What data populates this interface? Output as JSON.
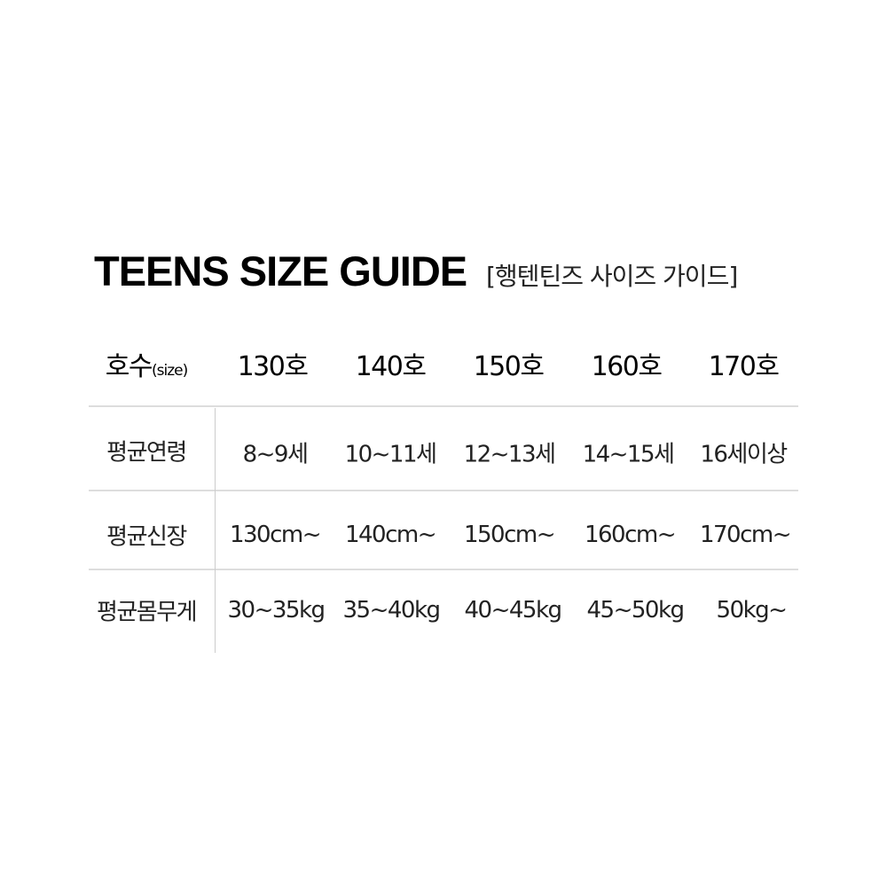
{
  "title": "TEENS SIZE GUIDE",
  "subtitle": "[행텐틴즈 사이즈 가이드]",
  "header": {
    "label": "호수",
    "label_suffix": "(size)",
    "sizes": [
      "130호",
      "140호",
      "150호",
      "160호",
      "170호"
    ]
  },
  "rows": [
    {
      "label": "평균연령",
      "values": [
        "8~9세",
        "10~11세",
        "12~13세",
        "14~15세",
        "16세이상"
      ]
    },
    {
      "label": "평균신장",
      "values": [
        "130cm~",
        "140cm~",
        "150cm~",
        "160cm~",
        "170cm~"
      ]
    },
    {
      "label": "평균몸무게",
      "values": [
        "30~35kg",
        "35~40kg",
        "40~45kg",
        "45~50kg",
        "50kg~"
      ]
    }
  ]
}
